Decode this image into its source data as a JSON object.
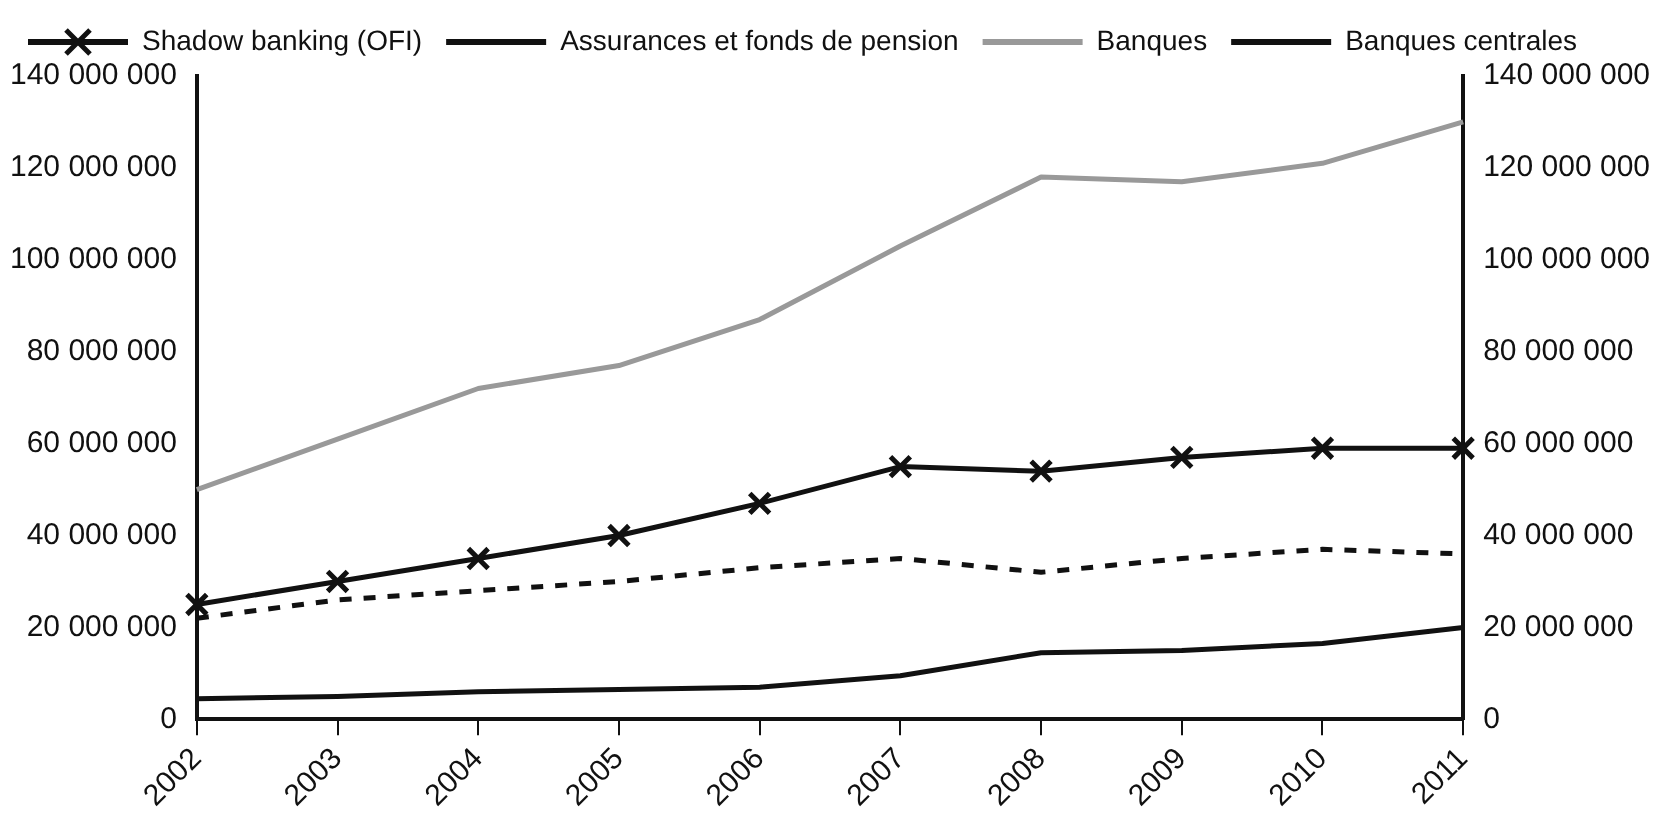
{
  "chart_data": {
    "type": "line",
    "categories": [
      "2002",
      "2003",
      "2004",
      "2005",
      "2006",
      "2007",
      "2008",
      "2009",
      "2010",
      "2011"
    ],
    "series": [
      {
        "name": "Shadow banking (OFI)",
        "color": "#111111",
        "marker": "cross",
        "line_style": "solid",
        "values": [
          25000000,
          30000000,
          35000000,
          40000000,
          47000000,
          55000000,
          54000000,
          57000000,
          59000000,
          59000000
        ]
      },
      {
        "name": "Assurances et fonds de pension",
        "color": "#111111",
        "marker": "none",
        "line_style": "dashed",
        "values": [
          22000000,
          26000000,
          28000000,
          30000000,
          33000000,
          35000000,
          32000000,
          35000000,
          37000000,
          36000000
        ]
      },
      {
        "name": "Banques",
        "color": "#999999",
        "marker": "none",
        "line_style": "solid",
        "values": [
          50000000,
          61000000,
          72000000,
          77000000,
          87000000,
          103000000,
          118000000,
          117000000,
          121000000,
          130000000
        ]
      },
      {
        "name": "Banques centrales",
        "color": "#111111",
        "marker": "none",
        "line_style": "solid",
        "values": [
          4500000,
          5000000,
          6000000,
          6500000,
          7000000,
          9500000,
          14500000,
          15000000,
          16500000,
          20000000
        ]
      }
    ],
    "ylim": [
      0,
      140000000
    ],
    "yticks": [
      {
        "value": 0,
        "label": "0"
      },
      {
        "value": 20000000,
        "label": "20 000 000"
      },
      {
        "value": 40000000,
        "label": "40 000 000"
      },
      {
        "value": 60000000,
        "label": "60 000 000"
      },
      {
        "value": 80000000,
        "label": "80 000 000"
      },
      {
        "value": 100000000,
        "label": "100 000 000"
      },
      {
        "value": 120000000,
        "label": "120 000 000"
      },
      {
        "value": 140000000,
        "label": "140 000 000"
      }
    ],
    "y2lim": [
      0,
      140000000
    ],
    "y2ticks": [
      {
        "value": 0,
        "label": "0"
      },
      {
        "value": 20000000,
        "label": "20 000 000"
      },
      {
        "value": 40000000,
        "label": "40 000 000"
      },
      {
        "value": 60000000,
        "label": "60 000 000"
      },
      {
        "value": 80000000,
        "label": "80 000 000"
      },
      {
        "value": 100000000,
        "label": "100 000 000"
      },
      {
        "value": 120000000,
        "label": "120 000 000"
      },
      {
        "value": 140000000,
        "label": "140 000 000"
      }
    ],
    "grid": false,
    "legend": "top left"
  }
}
